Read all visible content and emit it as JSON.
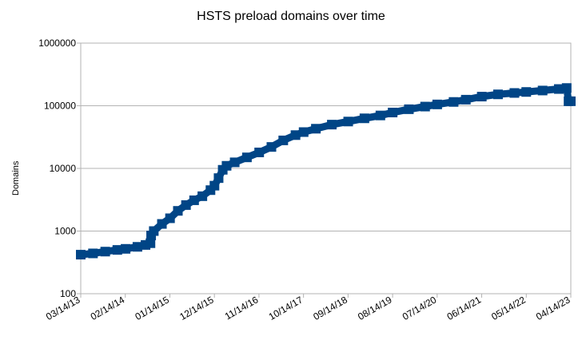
{
  "chart_data": {
    "type": "line",
    "title": "HSTS preload domains over time",
    "xlabel": "",
    "ylabel": "Domains",
    "yscale": "log",
    "ylim": [
      100,
      1000000
    ],
    "y_tick_labels": [
      "100",
      "1000",
      "10000",
      "100000",
      "1000000"
    ],
    "x_tick_labels": [
      "03/14/13",
      "02/14/14",
      "01/14/15",
      "12/14/15",
      "11/14/16",
      "10/14/17",
      "09/14/18",
      "08/14/19",
      "07/14/20",
      "06/14/21",
      "05/14/22",
      "04/14/23"
    ],
    "xlim": [
      "2013-03-14",
      "2023-04-14"
    ],
    "grid": "horizontal",
    "legend": "none",
    "series_color": "#004586",
    "series": [
      {
        "marker": "square",
        "points": [
          [
            "2013-03-14",
            420
          ],
          [
            "2013-06-14",
            440
          ],
          [
            "2013-09-14",
            470
          ],
          [
            "2013-12-14",
            500
          ],
          [
            "2014-02-14",
            520
          ],
          [
            "2014-05-14",
            560
          ],
          [
            "2014-07-14",
            600
          ],
          [
            "2014-08-20",
            640
          ],
          [
            "2014-08-25",
            850
          ],
          [
            "2014-09-14",
            1000
          ],
          [
            "2014-11-14",
            1300
          ],
          [
            "2015-01-14",
            1600
          ],
          [
            "2015-03-14",
            2100
          ],
          [
            "2015-05-14",
            2600
          ],
          [
            "2015-07-14",
            3100
          ],
          [
            "2015-09-14",
            3600
          ],
          [
            "2015-11-14",
            4500
          ],
          [
            "2015-12-14",
            5300
          ],
          [
            "2016-01-14",
            7000
          ],
          [
            "2016-02-14",
            9500
          ],
          [
            "2016-03-14",
            11000
          ],
          [
            "2016-05-14",
            12500
          ],
          [
            "2016-08-14",
            15000
          ],
          [
            "2016-11-14",
            18000
          ],
          [
            "2017-02-14",
            22000
          ],
          [
            "2017-05-14",
            28000
          ],
          [
            "2017-08-14",
            34000
          ],
          [
            "2017-10-14",
            38000
          ],
          [
            "2018-01-14",
            43000
          ],
          [
            "2018-05-14",
            50000
          ],
          [
            "2018-09-14",
            56000
          ],
          [
            "2019-01-14",
            63000
          ],
          [
            "2019-05-14",
            70000
          ],
          [
            "2019-08-14",
            78000
          ],
          [
            "2019-12-14",
            88000
          ],
          [
            "2020-04-14",
            97000
          ],
          [
            "2020-07-14",
            105000
          ],
          [
            "2020-11-14",
            115000
          ],
          [
            "2021-02-14",
            125000
          ],
          [
            "2021-06-14",
            140000
          ],
          [
            "2021-10-14",
            152000
          ],
          [
            "2022-02-14",
            160000
          ],
          [
            "2022-05-14",
            166000
          ],
          [
            "2022-09-14",
            175000
          ],
          [
            "2023-01-14",
            185000
          ],
          [
            "2023-03-14",
            192000
          ],
          [
            "2023-03-28",
            118000
          ],
          [
            "2023-04-14",
            118000
          ]
        ]
      }
    ]
  }
}
